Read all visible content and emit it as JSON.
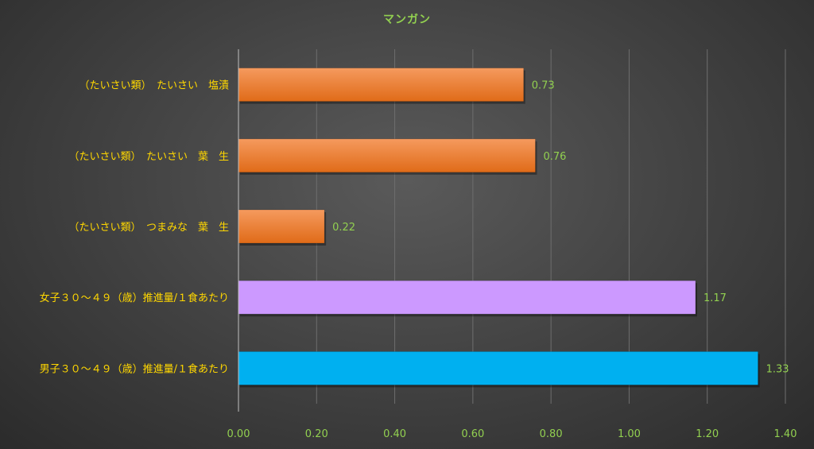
{
  "chart_data": {
    "type": "bar",
    "orientation": "horizontal",
    "title": "マンガン",
    "xlabel": "",
    "ylabel": "",
    "xlim": [
      0,
      1.4
    ],
    "ticks": [
      "0.00",
      "0.20",
      "0.40",
      "0.60",
      "0.80",
      "1.00",
      "1.20",
      "1.40"
    ],
    "tick_values": [
      0,
      0.2,
      0.4,
      0.6,
      0.8,
      1.0,
      1.2,
      1.4
    ],
    "grid": true,
    "legend": "none",
    "categories": [
      "（たいさい類）　たいさい　塩漬",
      "（たいさい類）　たいさい　葉　生",
      "（たいさい類）　つまみな　葉　生",
      "女子３０～４９（歳）推進量/１食あたり",
      "男子３０～４９（歳）推進量/１食あたり"
    ],
    "values": [
      0.73,
      0.76,
      0.22,
      1.17,
      1.33
    ],
    "value_labels": [
      "0.73",
      "0.76",
      "0.22",
      "1.17",
      "1.33"
    ],
    "bar_colors": [
      "#ed7d31",
      "#ed7d31",
      "#ed7d31",
      "#cc99ff",
      "#00b0f0"
    ],
    "colors": {
      "title": "#92d050",
      "category_label": "#ffd700",
      "tick_label": "#92d050",
      "value_label": "#92d050",
      "grid": "#6e6e6e",
      "axis": "#bfbfbf"
    }
  }
}
